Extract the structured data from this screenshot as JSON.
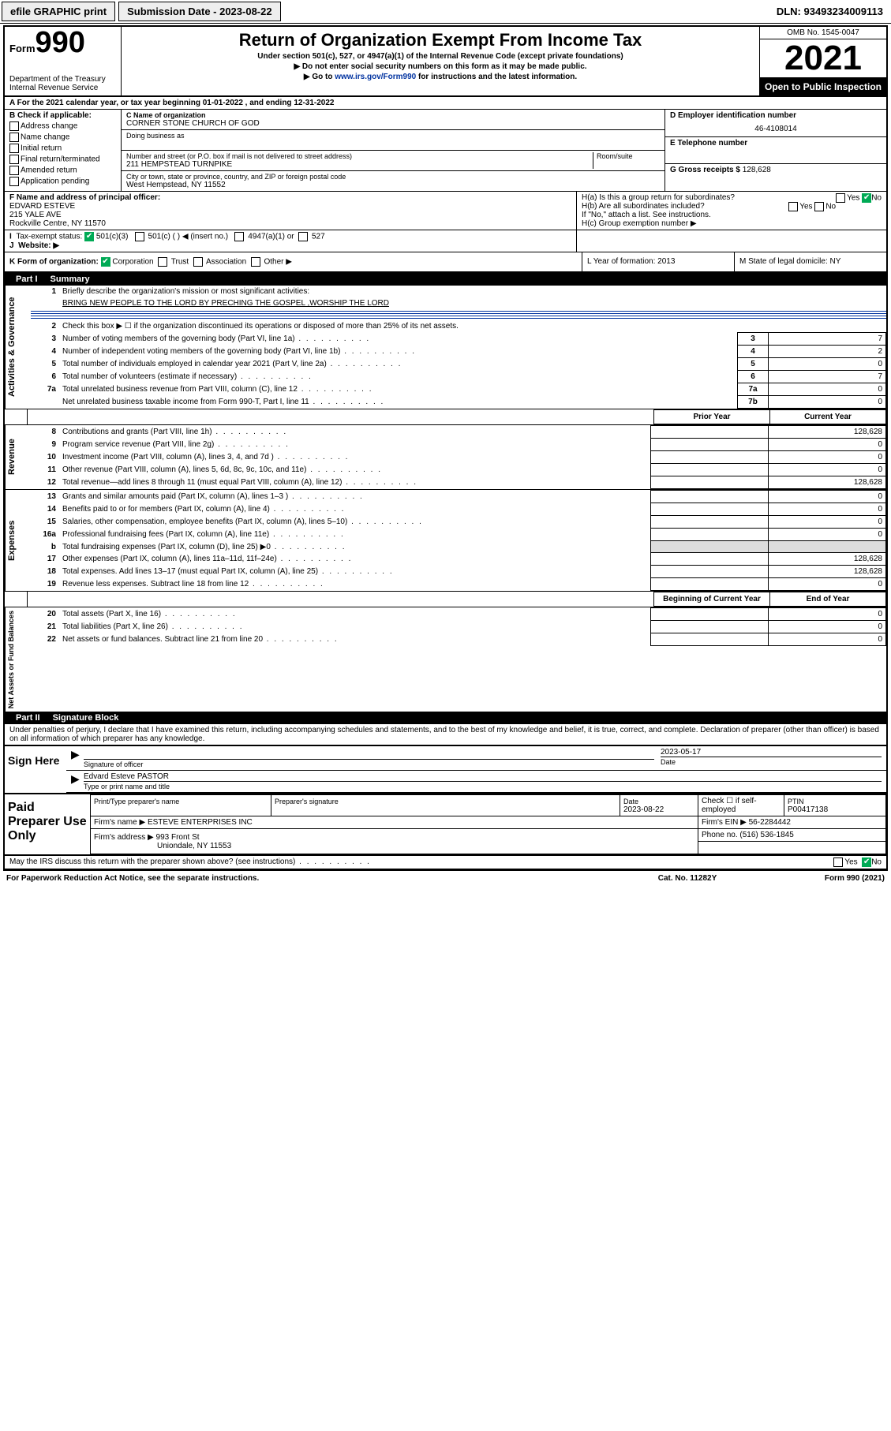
{
  "topbar": {
    "efile": "efile GRAPHIC print",
    "submission": "Submission Date - 2023-08-22",
    "dln": "DLN: 93493234009113"
  },
  "header": {
    "form_prefix": "Form",
    "form_number": "990",
    "dept": "Department of the Treasury Internal Revenue Service",
    "title": "Return of Organization Exempt From Income Tax",
    "sub1": "Under section 501(c), 527, or 4947(a)(1) of the Internal Revenue Code (except private foundations)",
    "sub2": "▶ Do not enter social security numbers on this form as it may be made public.",
    "sub3_pre": "▶ Go to ",
    "sub3_link": "www.irs.gov/Form990",
    "sub3_post": " for instructions and the latest information.",
    "omb": "OMB No. 1545-0047",
    "year": "2021",
    "inspection": "Open to Public Inspection"
  },
  "rowA": "A For the 2021 calendar year, or tax year beginning 01-01-2022   , and ending 12-31-2022",
  "colB": {
    "title": "B Check if applicable:",
    "items": [
      "Address change",
      "Name change",
      "Initial return",
      "Final return/terminated",
      "Amended return",
      "Application pending"
    ]
  },
  "colC": {
    "name_label": "C Name of organization",
    "name": "CORNER STONE CHURCH OF GOD",
    "dba_label": "Doing business as",
    "addr_label": "Number and street (or P.O. box if mail is not delivered to street address)",
    "addr": "211 HEMPSTEAD TURNPIKE",
    "room_label": "Room/suite",
    "city_label": "City or town, state or province, country, and ZIP or foreign postal code",
    "city": "West Hempstead, NY  11552"
  },
  "colD": {
    "ein_label": "D Employer identification number",
    "ein": "46-4108014",
    "phone_label": "E Telephone number",
    "gross_label": "G Gross receipts $ ",
    "gross": "128,628"
  },
  "rowF": {
    "label": "F  Name and address of principal officer:",
    "name": "EDVARD ESTEVE",
    "addr1": "215 YALE AVE",
    "addr2": "Rockville Centre, NY  11570"
  },
  "rowH": {
    "a": "H(a)  Is this a group return for subordinates?",
    "b": "H(b)  Are all subordinates included?",
    "b_note": "If \"No,\" attach a list. See instructions.",
    "c": "H(c)  Group exemption number ▶"
  },
  "rowI": {
    "label": "Tax-exempt status:",
    "opt1": "501(c)(3)",
    "opt2": "501(c) (  ) ◀ (insert no.)",
    "opt3": "4947(a)(1) or",
    "opt4": "527"
  },
  "rowJ": "Website: ▶",
  "rowK": {
    "label": "K Form of organization:",
    "opts": [
      "Corporation",
      "Trust",
      "Association",
      "Other ▶"
    ],
    "L": "L Year of formation: 2013",
    "M": "M State of legal domicile: NY"
  },
  "part1": {
    "header_pt": "Part I",
    "header_nm": "Summary",
    "q1": "Briefly describe the organization's mission or most significant activities:",
    "q1_ans": "BRING NEW PEOPLE TO THE LORD BY PRECHING THE GOSPEL ,WORSHIP THE LORD",
    "q2": "Check this box ▶ ☐  if the organization discontinued its operations or disposed of more than 25% of its net assets.",
    "lines": [
      {
        "n": "3",
        "t": "Number of voting members of the governing body (Part VI, line 1a)",
        "box": "3",
        "v": "7"
      },
      {
        "n": "4",
        "t": "Number of independent voting members of the governing body (Part VI, line 1b)",
        "box": "4",
        "v": "2"
      },
      {
        "n": "5",
        "t": "Total number of individuals employed in calendar year 2021 (Part V, line 2a)",
        "box": "5",
        "v": "0"
      },
      {
        "n": "6",
        "t": "Total number of volunteers (estimate if necessary)",
        "box": "6",
        "v": "7"
      },
      {
        "n": "7a",
        "t": "Total unrelated business revenue from Part VIII, column (C), line 12",
        "box": "7a",
        "v": "0"
      },
      {
        "n": "",
        "t": "Net unrelated business taxable income from Form 990-T, Part I, line 11",
        "box": "7b",
        "v": "0"
      }
    ],
    "col_prior": "Prior Year",
    "col_current": "Current Year",
    "revenue_label": "Revenue",
    "revenue": [
      {
        "n": "8",
        "t": "Contributions and grants (Part VIII, line 1h)",
        "p": "",
        "c": "128,628"
      },
      {
        "n": "9",
        "t": "Program service revenue (Part VIII, line 2g)",
        "p": "",
        "c": "0"
      },
      {
        "n": "10",
        "t": "Investment income (Part VIII, column (A), lines 3, 4, and 7d )",
        "p": "",
        "c": "0"
      },
      {
        "n": "11",
        "t": "Other revenue (Part VIII, column (A), lines 5, 6d, 8c, 9c, 10c, and 11e)",
        "p": "",
        "c": "0"
      },
      {
        "n": "12",
        "t": "Total revenue—add lines 8 through 11 (must equal Part VIII, column (A), line 12)",
        "p": "",
        "c": "128,628"
      }
    ],
    "expenses_label": "Expenses",
    "expenses": [
      {
        "n": "13",
        "t": "Grants and similar amounts paid (Part IX, column (A), lines 1–3 )",
        "p": "",
        "c": "0"
      },
      {
        "n": "14",
        "t": "Benefits paid to or for members (Part IX, column (A), line 4)",
        "p": "",
        "c": "0"
      },
      {
        "n": "15",
        "t": "Salaries, other compensation, employee benefits (Part IX, column (A), lines 5–10)",
        "p": "",
        "c": "0"
      },
      {
        "n": "16a",
        "t": "Professional fundraising fees (Part IX, column (A), line 11e)",
        "p": "",
        "c": "0"
      },
      {
        "n": "b",
        "t": "Total fundraising expenses (Part IX, column (D), line 25) ▶0",
        "p": "shade",
        "c": "shade"
      },
      {
        "n": "17",
        "t": "Other expenses (Part IX, column (A), lines 11a–11d, 11f–24e)",
        "p": "",
        "c": "128,628"
      },
      {
        "n": "18",
        "t": "Total expenses. Add lines 13–17 (must equal Part IX, column (A), line 25)",
        "p": "",
        "c": "128,628"
      },
      {
        "n": "19",
        "t": "Revenue less expenses. Subtract line 18 from line 12",
        "p": "",
        "c": "0"
      }
    ],
    "net_label": "Net Assets or Fund Balances",
    "col_begin": "Beginning of Current Year",
    "col_end": "End of Year",
    "net": [
      {
        "n": "20",
        "t": "Total assets (Part X, line 16)",
        "p": "",
        "c": "0"
      },
      {
        "n": "21",
        "t": "Total liabilities (Part X, line 26)",
        "p": "",
        "c": "0"
      },
      {
        "n": "22",
        "t": "Net assets or fund balances. Subtract line 21 from line 20",
        "p": "",
        "c": "0"
      }
    ]
  },
  "part2": {
    "header_pt": "Part II",
    "header_nm": "Signature Block",
    "declare": "Under penalties of perjury, I declare that I have examined this return, including accompanying schedules and statements, and to the best of my knowledge and belief, it is true, correct, and complete. Declaration of preparer (other than officer) is based on all information of which preparer has any knowledge.",
    "sign_here": "Sign Here",
    "sig_officer_date": "2023-05-17",
    "sig_officer_label": "Signature of officer",
    "date_label": "Date",
    "officer_name": "Edvard Esteve PASTOR",
    "officer_name_label": "Type or print name and title",
    "paid_label": "Paid Preparer Use Only",
    "prep_name_label": "Print/Type preparer's name",
    "prep_sig_label": "Preparer's signature",
    "prep_date": "2023-08-22",
    "prep_check": "Check ☐ if self-employed",
    "ptin_label": "PTIN",
    "ptin": "P00417138",
    "firm_name_label": "Firm's name    ▶",
    "firm_name": "ESTEVE ENTERPRISES INC",
    "firm_ein_label": "Firm's EIN ▶",
    "firm_ein": "56-2284442",
    "firm_addr_label": "Firm's address ▶",
    "firm_addr1": "993 Front St",
    "firm_addr2": "Uniondale, NY  11553",
    "phone_label": "Phone no.",
    "phone": "(516) 536-1845",
    "may_irs": "May the IRS discuss this return with the preparer shown above? (see instructions)",
    "yes": "Yes",
    "no": "No"
  },
  "footer": {
    "paperwork": "For Paperwork Reduction Act Notice, see the separate instructions.",
    "cat": "Cat. No. 11282Y",
    "form": "Form 990 (2021)"
  }
}
